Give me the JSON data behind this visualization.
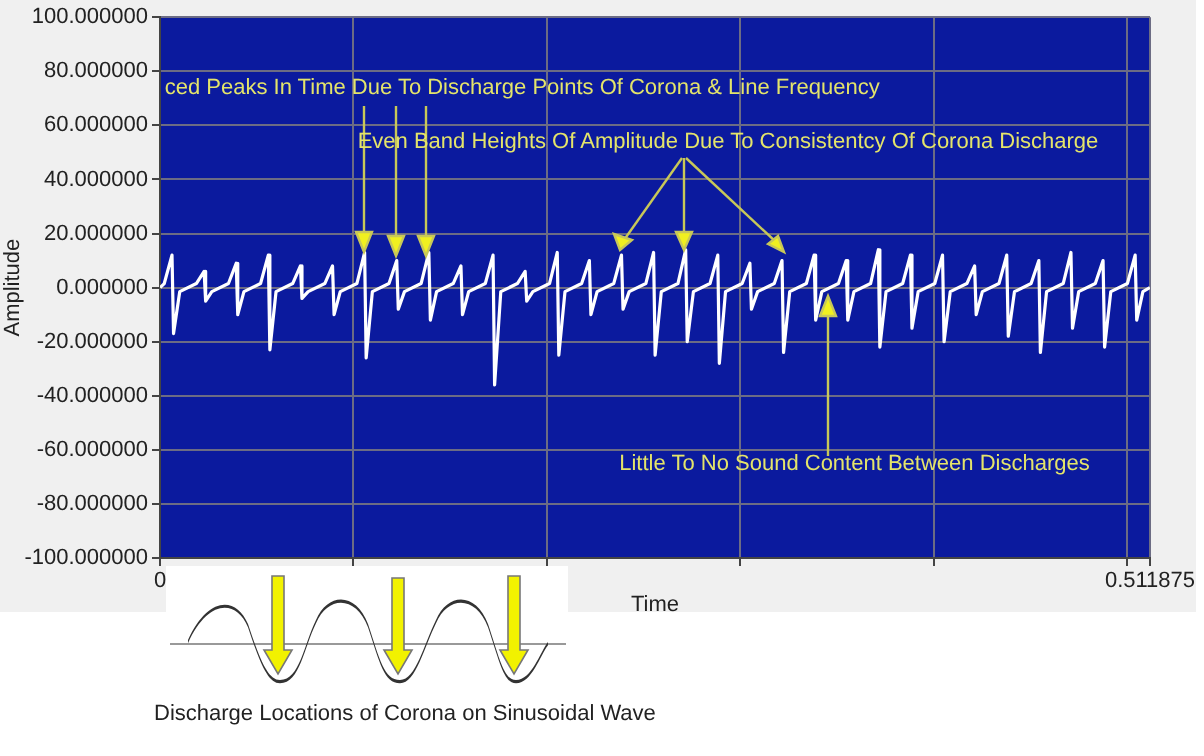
{
  "chart_data": {
    "type": "line",
    "xlabel": "Time",
    "ylabel": "Amplitude",
    "xlim": [
      0,
      0.511875
    ],
    "xticks": [
      0,
      {
        "value": 0.1,
        "label": null
      },
      {
        "value": 0.2,
        "label": null
      },
      {
        "value": 0.3,
        "label": null
      },
      {
        "value": 0.4,
        "label": null
      },
      {
        "value": 0.5,
        "label": null
      },
      0.511875
    ],
    "ylim": [
      -100,
      100
    ],
    "yticks": [
      {
        "value": -100,
        "label": "-100.000000"
      },
      {
        "value": -80,
        "label": "-80.000000"
      },
      {
        "value": -60,
        "label": "-60.000000"
      },
      {
        "value": -40,
        "label": "-40.000000"
      },
      {
        "value": -20,
        "label": "-20.000000"
      },
      {
        "value": 0,
        "label": "0.000000"
      },
      {
        "value": 20,
        "label": "20.000000"
      },
      {
        "value": 40,
        "label": "40.000000"
      },
      {
        "value": 60,
        "label": "60.000000"
      },
      {
        "value": 80,
        "label": "80.000000"
      },
      {
        "value": 100,
        "label": "100.000000"
      }
    ],
    "grid": true,
    "marker": "none",
    "line_style": "solid",
    "series": [
      {
        "color": "#ffffff",
        "x": [
          0,
          0.0022,
          0.0062,
          0.007,
          0.0102,
          0.0188,
          0.0228,
          0.0236,
          0.0268,
          0.0354,
          0.0394,
          0.0402,
          0.0434,
          0.052,
          0.056,
          0.0568,
          0.06,
          0.0686,
          0.0726,
          0.0734,
          0.0766,
          0.0852,
          0.0892,
          0.09,
          0.0932,
          0.1018,
          0.1058,
          0.1066,
          0.1098,
          0.1184,
          0.1224,
          0.1232,
          0.1264,
          0.135,
          0.139,
          0.1398,
          0.143,
          0.1516,
          0.1556,
          0.1564,
          0.1596,
          0.1682,
          0.1722,
          0.173,
          0.1762,
          0.1848,
          0.1888,
          0.1896,
          0.1928,
          0.2014,
          0.2054,
          0.2062,
          0.2094,
          0.218,
          0.222,
          0.2228,
          0.226,
          0.2346,
          0.2386,
          0.2394,
          0.2426,
          0.2512,
          0.2552,
          0.256,
          0.2592,
          0.2678,
          0.2718,
          0.2726,
          0.2758,
          0.2844,
          0.2884,
          0.2892,
          0.2924,
          0.301,
          0.305,
          0.3058,
          0.309,
          0.3176,
          0.3216,
          0.3224,
          0.3256,
          0.3342,
          0.3382,
          0.339,
          0.3422,
          0.3508,
          0.3548,
          0.3556,
          0.3588,
          0.3674,
          0.3714,
          0.3722,
          0.3754,
          0.384,
          0.388,
          0.3888,
          0.392,
          0.4006,
          0.4046,
          0.4054,
          0.4086,
          0.4172,
          0.4212,
          0.422,
          0.4252,
          0.4338,
          0.4378,
          0.4386,
          0.4418,
          0.4504,
          0.4544,
          0.4552,
          0.4584,
          0.467,
          0.471,
          0.4718,
          0.475,
          0.4836,
          0.4876,
          0.4884,
          0.4916,
          0.5002,
          0.5042,
          0.505,
          0.5082,
          0.5118
        ],
        "values": [
          0,
          1.5,
          12,
          -17,
          -1.5,
          1.5,
          6,
          -5,
          -1.5,
          1.5,
          9,
          -10,
          -1.5,
          1.5,
          12,
          -23,
          -1.5,
          1.5,
          8,
          -4,
          -1.5,
          1.5,
          8,
          -10,
          -1.5,
          1.5,
          13,
          -26,
          -1.5,
          1.5,
          10,
          -8,
          -1.5,
          1.5,
          13,
          -12,
          -1.5,
          1.5,
          8,
          -10,
          -1.5,
          1.5,
          12,
          -36,
          -1.5,
          1.5,
          6,
          -5,
          -1.5,
          1.5,
          13,
          -25,
          -1.5,
          1.5,
          10,
          -10,
          -1.5,
          1.5,
          12,
          -8,
          -1.5,
          1.5,
          13,
          -25,
          -1.5,
          1.5,
          14,
          -20,
          -1.5,
          1.5,
          12,
          -28,
          -1.5,
          1.5,
          9,
          -8,
          -1.5,
          1.5,
          10,
          -24,
          -1.5,
          1.5,
          12,
          -12,
          -1.5,
          1.5,
          10,
          -12,
          -1.5,
          1.5,
          14,
          -22,
          -1.5,
          1.5,
          12,
          -15,
          -1.5,
          1.5,
          12,
          -20,
          -1.5,
          1.5,
          8,
          -10,
          -1.5,
          1.5,
          12,
          -18,
          -1.5,
          1.5,
          10,
          -24,
          -1.5,
          1.5,
          13,
          -15,
          -1.5,
          1.5,
          10,
          -22,
          -1.5,
          1.5,
          12,
          -12,
          -1.5,
          0
        ]
      }
    ],
    "annotations": [
      {
        "text": "ced Peaks In Time Due To Discharge Points Of Corona & Line Frequency",
        "x": 0.1224,
        "y": 10
      },
      {
        "text": "Even Band Heights Of Amplitude Due To Consistentcy Of Corona Discharge",
        "x": 0.2718,
        "y": 14
      },
      {
        "text": "Little To No Sound Content Between Discharges",
        "x": 0.345,
        "y": -3
      },
      "Discharge Locations of Corona on Sinusoidal Wave"
    ]
  }
}
